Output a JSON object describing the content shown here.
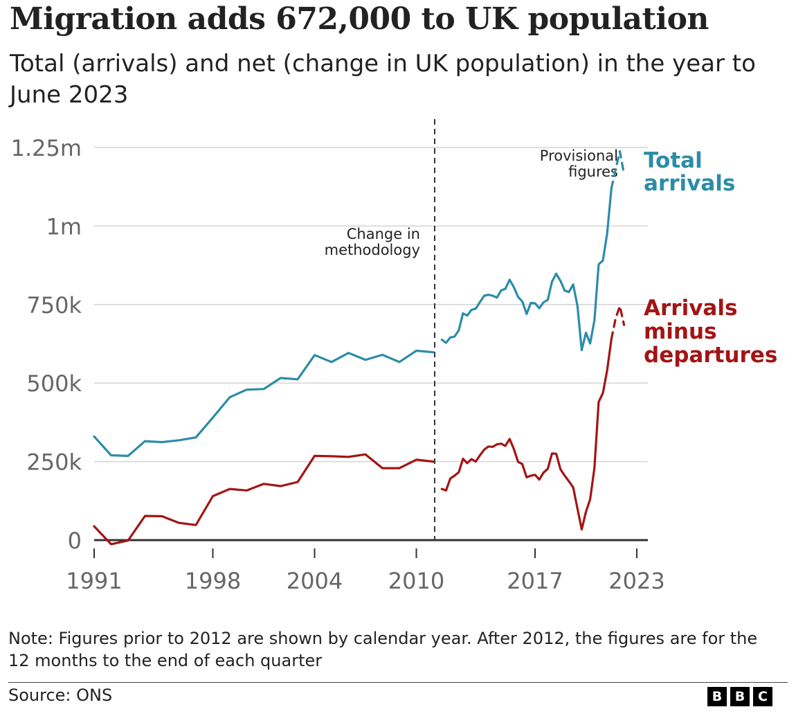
{
  "header": {
    "title": "Migration adds 672,000 to UK population",
    "subtitle": "Total (arrivals) and net (change in UK population) in the year to June 2023"
  },
  "colors": {
    "total": "#2b8ca8",
    "net": "#a31414",
    "grid": "#d4d4d4",
    "axis": "#333333",
    "tick_text": "#666666"
  },
  "footer": {
    "note": "Note: Figures prior to 2012 are shown by calendar year. After 2012, the figures are for the 12 months to the end of each quarter",
    "source": "Source: ONS",
    "logo": [
      "B",
      "B",
      "C"
    ]
  },
  "chart_data": {
    "type": "line",
    "title": "Migration adds 672,000 to UK population",
    "subtitle": "Total (arrivals) and net (change in UK population) in the year to June 2023",
    "xlabel": "",
    "ylabel": "",
    "xlim": [
      1991,
      2023
    ],
    "ylim": [
      0,
      1250000
    ],
    "grid": true,
    "x_ticks": [
      1991,
      1998,
      2004,
      2010,
      2017,
      2023
    ],
    "x_tick_labels": [
      "1991",
      "1998",
      "2004",
      "2010",
      "2017",
      "2023"
    ],
    "y_ticks": [
      0,
      250000,
      500000,
      750000,
      1000000,
      1250000
    ],
    "y_tick_labels": [
      "0",
      "250k",
      "500k",
      "750k",
      "1m",
      "1.25m"
    ],
    "annotations": {
      "methodology": {
        "x": 2011,
        "label": [
          "Change in",
          "methodology"
        ]
      },
      "provisional": {
        "label": [
          "Provisional",
          "figures"
        ]
      }
    },
    "series": [
      {
        "name": "Total arrivals",
        "label_lines": [
          "Total",
          "arrivals"
        ],
        "segments": [
          {
            "style": "solid",
            "points": [
              [
                1991,
                330000
              ],
              [
                1992,
                270000
              ],
              [
                1993,
                268000
              ],
              [
                1994,
                315000
              ],
              [
                1995,
                312000
              ],
              [
                1996,
                318000
              ],
              [
                1997,
                327000
              ],
              [
                1998,
                390000
              ],
              [
                1999,
                455000
              ],
              [
                2000,
                479000
              ],
              [
                2001,
                481000
              ],
              [
                2002,
                516000
              ],
              [
                2003,
                512000
              ],
              [
                2004,
                589000
              ],
              [
                2005,
                567000
              ],
              [
                2006,
                596000
              ],
              [
                2007,
                574000
              ],
              [
                2008,
                590000
              ],
              [
                2009,
                567000
              ],
              [
                2010,
                603000
              ],
              [
                2011,
                598000
              ]
            ]
          },
          {
            "style": "solid",
            "points": [
              [
                2011.5,
                638000
              ],
              [
                2011.75,
                628000
              ],
              [
                2012,
                645000
              ],
              [
                2012.25,
                648000
              ],
              [
                2012.5,
                668000
              ],
              [
                2012.75,
                722000
              ],
              [
                2013,
                715000
              ],
              [
                2013.25,
                733000
              ],
              [
                2013.5,
                737000
              ],
              [
                2013.75,
                758000
              ],
              [
                2014,
                778000
              ],
              [
                2014.25,
                781000
              ],
              [
                2014.5,
                778000
              ],
              [
                2014.75,
                772000
              ],
              [
                2015,
                795000
              ],
              [
                2015.25,
                800000
              ],
              [
                2015.5,
                829000
              ],
              [
                2015.75,
                805000
              ],
              [
                2016,
                774000
              ],
              [
                2016.25,
                760000
              ],
              [
                2016.5,
                720000
              ],
              [
                2016.75,
                755000
              ],
              [
                2017,
                754000
              ],
              [
                2017.25,
                738000
              ],
              [
                2017.5,
                757000
              ],
              [
                2017.75,
                765000
              ],
              [
                2018,
                823000
              ],
              [
                2018.25,
                848000
              ],
              [
                2018.5,
                825000
              ],
              [
                2018.75,
                794000
              ],
              [
                2019,
                790000
              ],
              [
                2019.25,
                814000
              ],
              [
                2019.5,
                745000
              ],
              [
                2019.75,
                605000
              ],
              [
                2020,
                660000
              ],
              [
                2020.25,
                626000
              ],
              [
                2020.5,
                700000
              ],
              [
                2020.75,
                878000
              ],
              [
                2021,
                890000
              ],
              [
                2021.25,
                975000
              ],
              [
                2021.5,
                1120000
              ]
            ]
          },
          {
            "style": "dashed",
            "points": [
              [
                2021.5,
                1120000
              ],
              [
                2021.75,
                1180000
              ],
              [
                2022,
                1238000
              ],
              [
                2022.25,
                1165000
              ]
            ]
          }
        ]
      },
      {
        "name": "Arrivals minus departures",
        "label_lines": [
          "Arrivals",
          "minus",
          "departures"
        ],
        "segments": [
          {
            "style": "solid",
            "points": [
              [
                1991,
                44000
              ],
              [
                1992,
                -13000
              ],
              [
                1993,
                -1000
              ],
              [
                1994,
                77000
              ],
              [
                1995,
                76000
              ],
              [
                1996,
                55000
              ],
              [
                1997,
                48000
              ],
              [
                1998,
                140000
              ],
              [
                1999,
                163000
              ],
              [
                2000,
                158000
              ],
              [
                2001,
                179000
              ],
              [
                2002,
                172000
              ],
              [
                2003,
                185000
              ],
              [
                2004,
                268000
              ],
              [
                2005,
                267000
              ],
              [
                2006,
                265000
              ],
              [
                2007,
                273000
              ],
              [
                2008,
                229000
              ],
              [
                2009,
                229000
              ],
              [
                2010,
                256000
              ],
              [
                2011,
                250000
              ]
            ]
          },
          {
            "style": "solid",
            "points": [
              [
                2011.5,
                163000
              ],
              [
                2011.75,
                158000
              ],
              [
                2012,
                196000
              ],
              [
                2012.25,
                205000
              ],
              [
                2012.5,
                216000
              ],
              [
                2012.75,
                259000
              ],
              [
                2013,
                245000
              ],
              [
                2013.25,
                258000
              ],
              [
                2013.5,
                250000
              ],
              [
                2013.75,
                270000
              ],
              [
                2014,
                288000
              ],
              [
                2014.25,
                298000
              ],
              [
                2014.5,
                297000
              ],
              [
                2014.75,
                305000
              ],
              [
                2015,
                307000
              ],
              [
                2015.25,
                300000
              ],
              [
                2015.5,
                322000
              ],
              [
                2015.75,
                290000
              ],
              [
                2016,
                249000
              ],
              [
                2016.25,
                242000
              ],
              [
                2016.5,
                200000
              ],
              [
                2016.75,
                205000
              ],
              [
                2017,
                208000
              ],
              [
                2017.25,
                193000
              ],
              [
                2017.5,
                215000
              ],
              [
                2017.75,
                227000
              ],
              [
                2018,
                276000
              ],
              [
                2018.25,
                275000
              ],
              [
                2018.5,
                225000
              ],
              [
                2018.75,
                205000
              ],
              [
                2019,
                187000
              ],
              [
                2019.25,
                168000
              ],
              [
                2019.5,
                100000
              ],
              [
                2019.75,
                34000
              ],
              [
                2020,
                90000
              ],
              [
                2020.25,
                130000
              ],
              [
                2020.5,
                230000
              ],
              [
                2020.75,
                440000
              ],
              [
                2021,
                468000
              ],
              [
                2021.25,
                540000
              ],
              [
                2021.5,
                640000
              ]
            ]
          },
          {
            "style": "dashed",
            "points": [
              [
                2021.5,
                640000
              ],
              [
                2021.75,
                706000
              ],
              [
                2022,
                745000
              ],
              [
                2022.25,
                685000
              ]
            ]
          }
        ]
      }
    ]
  }
}
